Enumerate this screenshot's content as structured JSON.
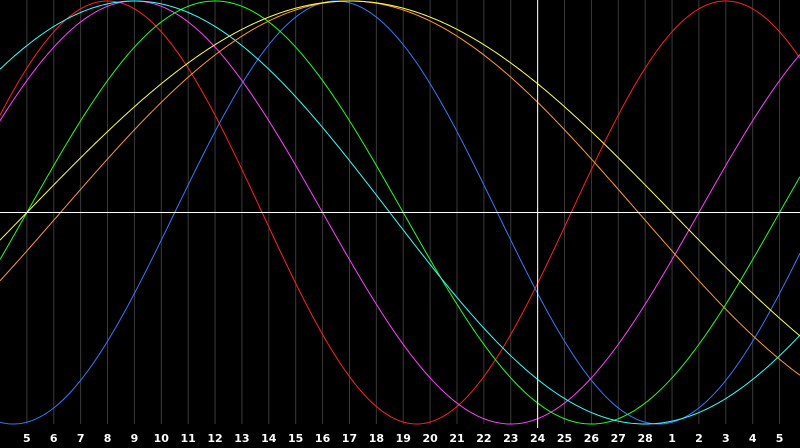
{
  "chart_data": {
    "type": "line",
    "title": "",
    "xlabel": "",
    "ylabel": "",
    "grid": true,
    "legend": "none",
    "x_ticks": [
      "5",
      "6",
      "7",
      "8",
      "9",
      "10",
      "11",
      "12",
      "13",
      "14",
      "15",
      "16",
      "17",
      "18",
      "19",
      "20",
      "21",
      "22",
      "23",
      "24",
      "25",
      "26",
      "27",
      "28",
      "1",
      "2",
      "3",
      "4",
      "5"
    ],
    "x_range": [
      4.0,
      33.76
    ],
    "ylim": [
      -100,
      100
    ],
    "current_day_index": 19,
    "series": [
      {
        "color": "#ff2020",
        "period": 23,
        "peak_day": 31.0
      },
      {
        "color": "#2f7bff",
        "period": 24,
        "peak_day": 16.5
      },
      {
        "color": "#ff40ff",
        "period": 28,
        "peak_day": 9.0
      },
      {
        "color": "#20ff20",
        "period": 28,
        "peak_day": 12.0
      },
      {
        "color": "#30ffff",
        "period": 38,
        "peak_day": 9.0
      },
      {
        "color": "#ff9a20",
        "period": 43,
        "peak_day": 17.0
      },
      {
        "color": "#ffff40",
        "period": 48,
        "peak_day": 17.0
      }
    ],
    "colors": {
      "background": "#000000",
      "gridline": "#3a3a3a",
      "axis": "#ffffff",
      "tick_text": "#ffffff"
    }
  }
}
